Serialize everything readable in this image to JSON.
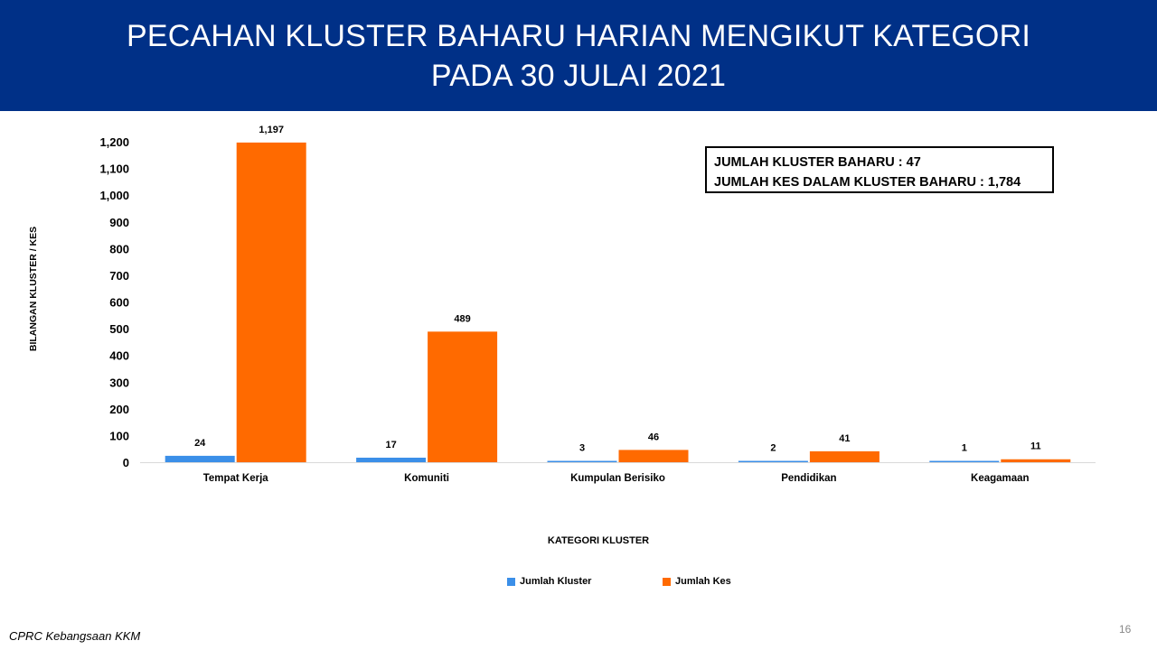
{
  "header": {
    "title_line1": "PECAHAN KLUSTER BAHARU HARIAN MENGIKUT KATEGORI",
    "title_line2": "PADA 30 JULAI 2021"
  },
  "summary": {
    "line1": "JUMLAH KLUSTER BAHARU : 47",
    "line2": "JUMLAH KES DALAM KLUSTER BAHARU : 1,784"
  },
  "footer": {
    "source": "CPRC Kebangsaan KKM",
    "page_number": "16"
  },
  "chart_data": {
    "type": "bar",
    "xlabel": "KATEGORI KLUSTER",
    "ylabel": "BILANGAN KLUSTER / KES",
    "categories": [
      "Tempat Kerja",
      "Komuniti",
      "Kumpulan Berisiko",
      "Pendidikan",
      "Keagamaan"
    ],
    "series": [
      {
        "name": "Jumlah Kluster",
        "color": "#3b8fe8",
        "values": [
          24,
          17,
          3,
          2,
          1
        ],
        "labels": [
          "24",
          "17",
          "3",
          "2",
          "1"
        ]
      },
      {
        "name": "Jumlah Kes",
        "color": "#ff6a00",
        "values": [
          1197,
          489,
          46,
          41,
          11
        ],
        "labels": [
          "1,197",
          "489",
          "46",
          "41",
          "11"
        ]
      }
    ],
    "ylim": [
      0,
      1200
    ],
    "yticks": [
      "0",
      "100",
      "200",
      "300",
      "400",
      "500",
      "600",
      "700",
      "800",
      "900",
      "1,000",
      "1,100",
      "1,200"
    ],
    "grid": false,
    "legend": "bottom"
  },
  "colors": {
    "banner": "#003087",
    "kluster": "#3b8fe8",
    "kes": "#ff6a00"
  }
}
